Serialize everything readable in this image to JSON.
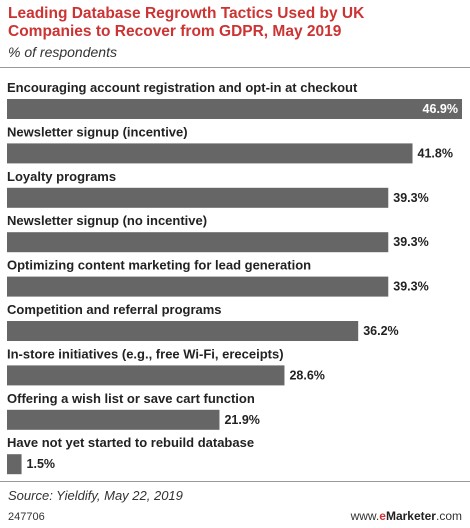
{
  "header": {
    "title": "Leading Database Regrowth Tactics Used by UK Companies to Recover from GDPR, May 2019",
    "subtitle": "% of respondents"
  },
  "chart_data": {
    "type": "bar",
    "orientation": "horizontal",
    "categories": [
      "Encouraging account registration and opt-in at checkout",
      "Newsletter signup (incentive)",
      "Loyalty programs",
      "Newsletter signup (no incentive)",
      "Optimizing content marketing for lead generation",
      "Competition and referral programs",
      "In-store initiatives (e.g., free Wi-Fi, ereceipts)",
      "Offering a wish list or save cart function",
      "Have not yet started to rebuild database"
    ],
    "values": [
      46.9,
      41.8,
      39.3,
      39.3,
      39.3,
      36.2,
      28.6,
      21.9,
      1.5
    ],
    "value_labels": [
      "46.9%",
      "41.8%",
      "39.3%",
      "39.3%",
      "39.3%",
      "36.2%",
      "28.6%",
      "21.9%",
      "1.5%"
    ],
    "xlim": [
      0,
      46.9
    ],
    "bar_color": "#666666",
    "grid": false
  },
  "footer": {
    "source": "Source: Yieldify, May 22, 2019",
    "chart_id": "247706",
    "credit_prefix": "www.",
    "credit_brand_e": "e",
    "credit_brand": "Marketer",
    "credit_suffix": ".com"
  }
}
